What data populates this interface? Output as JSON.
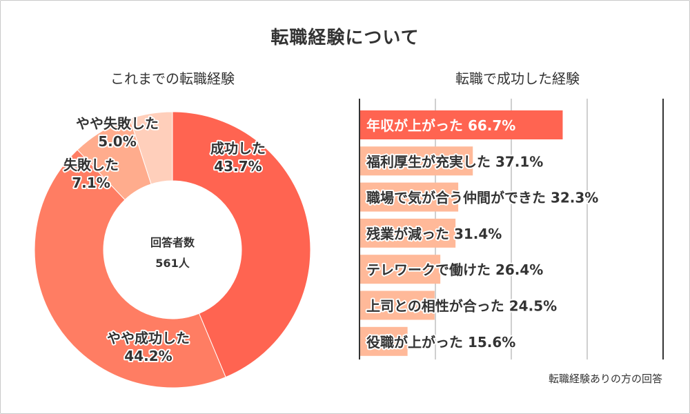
{
  "title": "転職経験について",
  "left_chart_title": "これまでの転職経験",
  "right_chart_title": "転職で成功した経験",
  "center_label": "回答者数",
  "center_value": "561人",
  "footnote": "転職経験ありの方の回答",
  "colors": {
    "success": "#ff6451",
    "somewhat_success": "#ff7d63",
    "failure": "#ffac8d",
    "somewhat_failure": "#ffcfbb",
    "bar_top": "#ff6451",
    "bar_other": "#ffb999",
    "label_outline": "#ffffff"
  },
  "chart_data": [
    {
      "type": "pie",
      "title": "これまでの転職経験",
      "center_text": [
        "回答者数",
        "561人"
      ],
      "slices": [
        {
          "label": "成功した",
          "value": 43.7,
          "display": "43.7%"
        },
        {
          "label": "やや成功した",
          "value": 44.2,
          "display": "44.2%"
        },
        {
          "label": "失敗した",
          "value": 7.1,
          "display": "7.1%"
        },
        {
          "label": "やや失敗した",
          "value": 5.0,
          "display": "5.0%"
        }
      ]
    },
    {
      "type": "bar",
      "orientation": "horizontal",
      "title": "転職で成功した経験",
      "xlim": [
        0,
        100
      ],
      "grid": true,
      "categories": [
        "年収が上がった",
        "福利厚生が充実した",
        "職場で気が合う仲間ができた",
        "残業が減った",
        "テレワークで働けた",
        "上司との相性が合った",
        "役職が上がった"
      ],
      "values": [
        66.7,
        37.1,
        32.3,
        31.4,
        26.4,
        24.5,
        15.6
      ],
      "display": [
        "66.7%",
        "37.1%",
        "32.3%",
        "31.4%",
        "26.4%",
        "24.5%",
        "15.6%"
      ]
    }
  ]
}
